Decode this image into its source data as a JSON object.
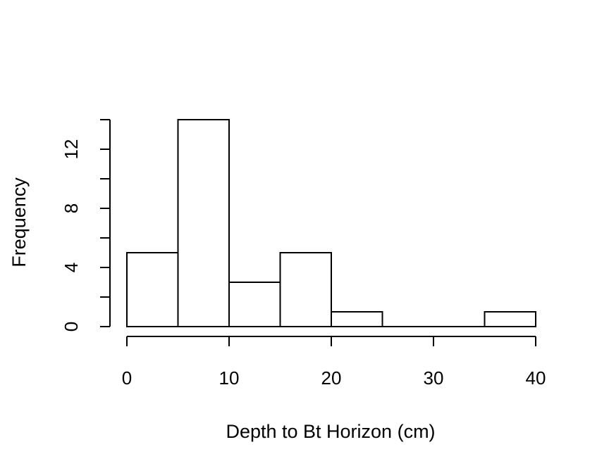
{
  "chart_data": {
    "type": "histogram",
    "title": "",
    "xlabel": "Depth to Bt Horizon (cm)",
    "ylabel": "Frequency",
    "bins": [
      {
        "start": 0,
        "end": 5,
        "count": 5
      },
      {
        "start": 5,
        "end": 10,
        "count": 14
      },
      {
        "start": 10,
        "end": 15,
        "count": 3
      },
      {
        "start": 15,
        "end": 20,
        "count": 5
      },
      {
        "start": 20,
        "end": 25,
        "count": 1
      },
      {
        "start": 25,
        "end": 30,
        "count": 0
      },
      {
        "start": 30,
        "end": 35,
        "count": 0
      },
      {
        "start": 35,
        "end": 40,
        "count": 1
      }
    ],
    "xlim": [
      0,
      40
    ],
    "ylim": [
      0,
      14
    ],
    "x_ticks": [
      0,
      10,
      20,
      30,
      40
    ],
    "x_tick_labels": [
      "0",
      "10",
      "20",
      "30",
      "40"
    ],
    "y_ticks": [
      0,
      2,
      4,
      6,
      8,
      10,
      12,
      14
    ],
    "y_tick_labels": [
      "0",
      "",
      "4",
      "",
      "8",
      "",
      "12",
      ""
    ],
    "grid": false,
    "legend": "none",
    "colors": {
      "bar_fill": "#ffffff",
      "bar_stroke": "#000000"
    }
  }
}
